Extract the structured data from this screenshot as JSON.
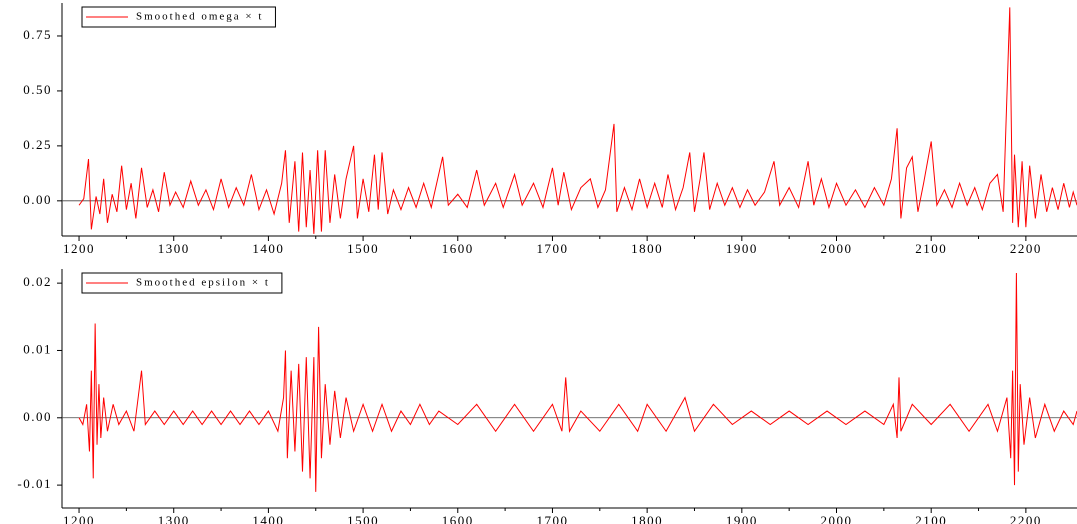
{
  "chart_data": [
    {
      "type": "line",
      "legend": "upper left",
      "x": [
        1200,
        1205,
        1210,
        1213,
        1218,
        1222,
        1226,
        1230,
        1235,
        1240,
        1245,
        1250,
        1255,
        1260,
        1266,
        1272,
        1278,
        1284,
        1290,
        1296,
        1302,
        1310,
        1318,
        1326,
        1334,
        1342,
        1350,
        1358,
        1366,
        1374,
        1382,
        1390,
        1398,
        1406,
        1414,
        1418,
        1422,
        1428,
        1432,
        1436,
        1440,
        1444,
        1448,
        1452,
        1456,
        1460,
        1465,
        1470,
        1476,
        1482,
        1490,
        1494,
        1500,
        1506,
        1512,
        1516,
        1520,
        1526,
        1532,
        1540,
        1548,
        1556,
        1564,
        1572,
        1584,
        1590,
        1600,
        1610,
        1620,
        1628,
        1640,
        1648,
        1660,
        1668,
        1680,
        1690,
        1700,
        1706,
        1712,
        1720,
        1730,
        1740,
        1748,
        1756,
        1765,
        1768,
        1776,
        1784,
        1792,
        1800,
        1808,
        1816,
        1822,
        1830,
        1838,
        1845,
        1850,
        1856,
        1860,
        1866,
        1874,
        1882,
        1890,
        1898,
        1906,
        1914,
        1924,
        1934,
        1940,
        1950,
        1960,
        1970,
        1976,
        1984,
        1992,
        2000,
        2010,
        2020,
        2030,
        2040,
        2050,
        2058,
        2064,
        2068,
        2074,
        2080,
        2086,
        2092,
        2100,
        2106,
        2114,
        2122,
        2130,
        2138,
        2146,
        2154,
        2162,
        2170,
        2176,
        2183,
        2186,
        2188,
        2192,
        2196,
        2200,
        2204,
        2210,
        2216,
        2222,
        2228,
        2234,
        2240,
        2246,
        2250,
        2254
      ],
      "series": [
        {
          "name": "Smoothed omega × t",
          "color": "#ff0000",
          "values": [
            -0.02,
            0.01,
            0.19,
            -0.13,
            0.02,
            -0.06,
            0.1,
            -0.1,
            0.03,
            -0.05,
            0.16,
            -0.04,
            0.08,
            -0.08,
            0.15,
            -0.03,
            0.05,
            -0.05,
            0.13,
            -0.02,
            0.04,
            -0.03,
            0.09,
            -0.02,
            0.05,
            -0.04,
            0.1,
            -0.03,
            0.06,
            -0.02,
            0.12,
            -0.04,
            0.05,
            -0.06,
            0.08,
            0.23,
            -0.1,
            0.18,
            -0.14,
            0.22,
            -0.12,
            0.14,
            -0.15,
            0.23,
            -0.14,
            0.23,
            -0.1,
            0.12,
            -0.08,
            0.1,
            0.25,
            -0.08,
            0.1,
            -0.05,
            0.21,
            -0.04,
            0.22,
            -0.06,
            0.05,
            -0.04,
            0.06,
            -0.03,
            0.08,
            -0.03,
            0.2,
            -0.02,
            0.03,
            -0.03,
            0.14,
            -0.02,
            0.08,
            -0.03,
            0.12,
            -0.02,
            0.08,
            -0.03,
            0.15,
            -0.02,
            0.13,
            -0.04,
            0.06,
            0.1,
            -0.03,
            0.05,
            0.35,
            -0.05,
            0.06,
            -0.04,
            0.1,
            -0.03,
            0.08,
            -0.03,
            0.12,
            -0.04,
            0.06,
            0.22,
            -0.05,
            0.1,
            0.22,
            -0.04,
            0.08,
            -0.02,
            0.06,
            -0.03,
            0.05,
            -0.02,
            0.04,
            0.18,
            -0.02,
            0.06,
            -0.03,
            0.18,
            -0.02,
            0.1,
            -0.03,
            0.08,
            -0.02,
            0.05,
            -0.03,
            0.06,
            -0.02,
            0.1,
            0.33,
            -0.08,
            0.15,
            0.2,
            -0.05,
            0.08,
            0.27,
            -0.02,
            0.05,
            -0.03,
            0.08,
            -0.02,
            0.06,
            -0.04,
            0.08,
            0.12,
            -0.05,
            0.88,
            -0.1,
            0.21,
            -0.12,
            0.18,
            -0.12,
            0.16,
            -0.08,
            0.12,
            -0.05,
            0.06,
            -0.04,
            0.08,
            -0.03,
            0.04,
            -0.02
          ]
        }
      ],
      "xlim": [
        1182,
        2254
      ],
      "xticks": [
        1200,
        1300,
        1400,
        1500,
        1600,
        1700,
        1800,
        1900,
        2000,
        2100,
        2200
      ],
      "ylim": [
        -0.16,
        0.9
      ],
      "yticks": [
        {
          "value": 0,
          "label": "0.00"
        },
        {
          "value": 0.25,
          "label": "0.25"
        },
        {
          "value": 0.5,
          "label": "0.50"
        },
        {
          "value": 0.75,
          "label": "0.75"
        }
      ]
    },
    {
      "type": "line",
      "legend": "upper left",
      "x": [
        1200,
        1204,
        1208,
        1211,
        1213,
        1215,
        1217,
        1219,
        1221,
        1223,
        1226,
        1230,
        1236,
        1242,
        1250,
        1258,
        1266,
        1270,
        1280,
        1290,
        1300,
        1310,
        1320,
        1330,
        1340,
        1350,
        1360,
        1370,
        1380,
        1390,
        1400,
        1410,
        1416,
        1418,
        1420,
        1424,
        1428,
        1432,
        1436,
        1440,
        1444,
        1448,
        1450,
        1453,
        1456,
        1460,
        1465,
        1470,
        1476,
        1482,
        1490,
        1500,
        1510,
        1520,
        1530,
        1540,
        1550,
        1560,
        1570,
        1580,
        1600,
        1620,
        1640,
        1660,
        1680,
        1700,
        1710,
        1714,
        1718,
        1730,
        1750,
        1770,
        1790,
        1800,
        1820,
        1840,
        1850,
        1870,
        1890,
        1910,
        1930,
        1950,
        1970,
        1990,
        2010,
        2030,
        2050,
        2060,
        2064,
        2066,
        2068,
        2080,
        2100,
        2120,
        2140,
        2160,
        2170,
        2180,
        2184,
        2186,
        2188,
        2190,
        2192,
        2194,
        2198,
        2204,
        2210,
        2220,
        2230,
        2240,
        2250,
        2254
      ],
      "series": [
        {
          "name": "Smoothed epsilon × t",
          "color": "#ff0000",
          "values": [
            0,
            -0.001,
            0.002,
            -0.005,
            0.007,
            -0.009,
            0.014,
            -0.004,
            0.005,
            -0.003,
            0.003,
            -0.002,
            0.002,
            -0.001,
            0.001,
            -0.002,
            0.007,
            -0.001,
            0.001,
            -0.001,
            0.001,
            -0.001,
            0.001,
            -0.001,
            0.001,
            -0.001,
            0.001,
            -0.001,
            0.001,
            -0.001,
            0.001,
            -0.002,
            0.003,
            0.01,
            -0.006,
            0.007,
            -0.005,
            0.008,
            -0.008,
            0.009,
            -0.009,
            0.009,
            -0.011,
            0.0135,
            -0.006,
            0.005,
            -0.004,
            0.004,
            -0.003,
            0.003,
            -0.002,
            0.002,
            -0.002,
            0.002,
            -0.002,
            0.001,
            -0.001,
            0.002,
            -0.001,
            0.001,
            -0.001,
            0.002,
            -0.002,
            0.002,
            -0.002,
            0.002,
            -0.002,
            0.006,
            -0.002,
            0.001,
            -0.002,
            0.002,
            -0.002,
            0.002,
            -0.002,
            0.003,
            -0.002,
            0.002,
            -0.001,
            0.001,
            -0.001,
            0.001,
            -0.001,
            0.001,
            -0.001,
            0.001,
            -0.001,
            0.002,
            -0.003,
            0.006,
            -0.002,
            0.002,
            -0.001,
            0.002,
            -0.002,
            0.002,
            -0.002,
            0.003,
            -0.006,
            0.007,
            -0.01,
            0.0215,
            -0.008,
            0.005,
            -0.004,
            0.003,
            -0.003,
            0.002,
            -0.002,
            0.001,
            -0.001,
            0.001
          ]
        }
      ],
      "xlim": [
        1182,
        2254
      ],
      "xticks": [
        1200,
        1300,
        1400,
        1500,
        1600,
        1700,
        1800,
        1900,
        2000,
        2100,
        2200
      ],
      "ylim": [
        -0.0134,
        0.0221
      ],
      "yticks": [
        {
          "value": -0.01,
          "label": "-0.01"
        },
        {
          "value": 0,
          "label": "0.00"
        },
        {
          "value": 0.01,
          "label": "0.01"
        },
        {
          "value": 0.02,
          "label": "0.02"
        }
      ]
    }
  ]
}
